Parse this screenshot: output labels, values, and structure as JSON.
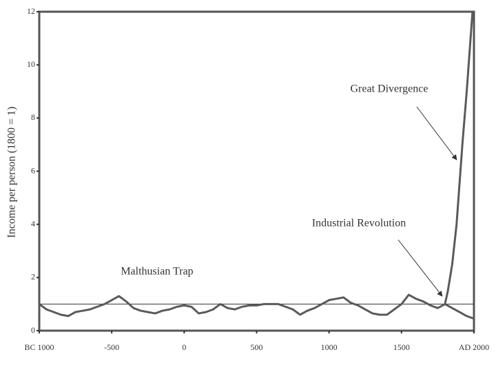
{
  "chart_data": {
    "type": "line",
    "y_label": "Income per person (1800 = 1)",
    "xlim": [
      -1000,
      2000
    ],
    "ylim": [
      0,
      12
    ],
    "xticks": [
      {
        "value": -1000,
        "label": "BC 1000"
      },
      -500,
      0,
      500,
      1000,
      1500,
      {
        "value": 2000,
        "label": "AD 2000"
      }
    ],
    "yticks": [
      0,
      2,
      4,
      6,
      8,
      10,
      12
    ],
    "reference_line": 1,
    "series": [
      {
        "color": "#5a5a5a",
        "x": [
          -1000,
          -950,
          -900,
          -850,
          -800,
          -750,
          -700,
          -650,
          -600,
          -550,
          -500,
          -450,
          -400,
          -350,
          -300,
          -250,
          -200,
          -150,
          -100,
          -50,
          0,
          50,
          100,
          150,
          200,
          250,
          300,
          350,
          400,
          450,
          500,
          550,
          600,
          650,
          700,
          750,
          800,
          850,
          900,
          950,
          1000,
          1050,
          1100,
          1150,
          1200,
          1250,
          1300,
          1350,
          1400,
          1450,
          1500,
          1550,
          1600,
          1650,
          1700,
          1750,
          1800,
          1820,
          1850,
          1880,
          1900,
          1920,
          1950,
          1970,
          1990
        ],
        "values": [
          1.0,
          0.8,
          0.7,
          0.6,
          0.55,
          0.7,
          0.75,
          0.8,
          0.9,
          1.0,
          1.15,
          1.3,
          1.1,
          0.85,
          0.75,
          0.7,
          0.65,
          0.75,
          0.8,
          0.9,
          0.95,
          0.9,
          0.65,
          0.7,
          0.8,
          1.0,
          0.85,
          0.8,
          0.9,
          0.95,
          0.95,
          1.0,
          1.0,
          1.0,
          0.9,
          0.8,
          0.6,
          0.75,
          0.85,
          1.0,
          1.15,
          1.2,
          1.25,
          1.05,
          0.95,
          0.8,
          0.65,
          0.6,
          0.6,
          0.8,
          1.0,
          1.35,
          1.2,
          1.1,
          0.95,
          0.85,
          1.0,
          1.5,
          2.5,
          4.0,
          5.5,
          7.0,
          9.0,
          10.5,
          12.0
        ]
      },
      {
        "color": "#5a5a5a",
        "x": [
          1800,
          1850,
          1900,
          1950,
          2000
        ],
        "values": [
          1.0,
          0.85,
          0.7,
          0.55,
          0.45
        ]
      }
    ],
    "annotations": [
      "Great Divergence",
      "Industrial Revolution",
      "Malthusian Trap"
    ]
  }
}
